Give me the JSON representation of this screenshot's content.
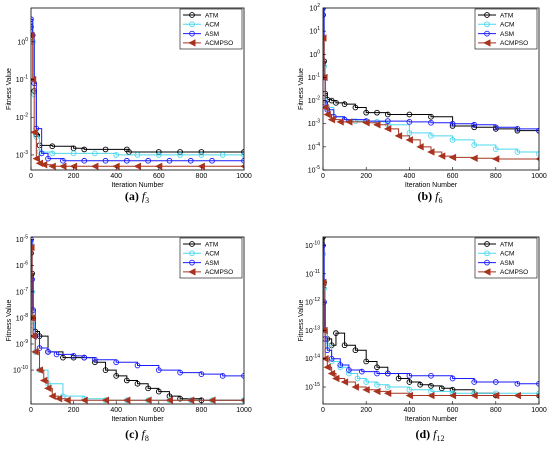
{
  "series_styles": {
    "ATM": {
      "color": "#000000",
      "marker": "circle"
    },
    "ACM": {
      "color": "#4dd8ee",
      "marker": "circle"
    },
    "ASM": {
      "color": "#1a1aff",
      "marker": "circle"
    },
    "ACMPSO": {
      "color": "#a8331f",
      "marker": "triangle-left"
    }
  },
  "chart_data": [
    {
      "type": "line",
      "caption_letter": "(a)",
      "caption_func": "f",
      "caption_sub": "3",
      "xlabel": "Iteration Number",
      "ylabel": "Fitness Value",
      "xlim": [
        0,
        1000
      ],
      "ylim_log10": [
        -3.4,
        0.9
      ],
      "yscale": "log",
      "xticks": [
        0,
        200,
        400,
        600,
        800,
        1000
      ],
      "yticks": [
        {
          "exp": -3,
          "label_exp": "-3"
        },
        {
          "exp": -2,
          "label_exp": "-2"
        },
        {
          "exp": -1,
          "label_exp": "-1"
        },
        {
          "exp": 0,
          "label_exp": "0"
        }
      ],
      "legend": [
        "ATM",
        "ACM",
        "ASM",
        "ACMPSO"
      ],
      "legend_position": "top-right",
      "series": [
        {
          "name": "ATM",
          "x": [
            0,
            8,
            15,
            25,
            40,
            100,
            200,
            250,
            350,
            450,
            460,
            600,
            700,
            800,
            1000
          ],
          "y": [
            2.5,
            1.0,
            0.05,
            0.0035,
            0.0018,
            0.0017,
            0.0015,
            0.0014,
            0.0014,
            0.0014,
            0.0012,
            0.0012,
            0.0012,
            0.0012,
            0.0012
          ]
        },
        {
          "name": "ACM",
          "x": [
            0,
            8,
            15,
            25,
            40,
            100,
            200,
            300,
            400,
            500,
            600,
            700,
            800,
            900,
            1000
          ],
          "y": [
            3.0,
            1.0,
            0.04,
            0.003,
            0.0012,
            0.0011,
            0.0011,
            0.0011,
            0.001,
            0.001,
            0.001,
            0.001,
            0.001,
            0.001,
            0.001
          ]
        },
        {
          "name": "ASM",
          "x": [
            0,
            8,
            15,
            25,
            50,
            80,
            150,
            250,
            350,
            450,
            550,
            650,
            750,
            850,
            1000
          ],
          "y": [
            4.0,
            1.5,
            0.08,
            0.005,
            0.0011,
            0.0008,
            0.0007,
            0.0007,
            0.0007,
            0.0007,
            0.0007,
            0.0007,
            0.0007,
            0.0007,
            0.0007
          ]
        },
        {
          "name": "ACMPSO",
          "x": [
            0,
            8,
            15,
            25,
            40,
            60,
            100,
            150,
            200,
            300,
            400,
            500,
            600,
            800,
            1000
          ],
          "y": [
            1.5,
            0.1,
            0.004,
            0.0008,
            0.0006,
            0.00055,
            0.0005,
            0.0005,
            0.0005,
            0.0005,
            0.0005,
            0.0005,
            0.0005,
            0.0005,
            0.0005
          ]
        }
      ]
    },
    {
      "type": "line",
      "caption_letter": "(b)",
      "caption_func": "f",
      "caption_sub": "6",
      "xlabel": "Iteration Number",
      "ylabel": "Fitness Value",
      "xlim": [
        0,
        1000
      ],
      "ylim_log10": [
        -5,
        2
      ],
      "yscale": "log",
      "xticks": [
        0,
        200,
        400,
        600,
        800,
        1000
      ],
      "yticks": [
        {
          "exp": -5,
          "label_exp": "-5"
        },
        {
          "exp": -4,
          "label_exp": "-4"
        },
        {
          "exp": -3,
          "label_exp": "-3"
        },
        {
          "exp": -2,
          "label_exp": "-2"
        },
        {
          "exp": -1,
          "label_exp": "-1"
        },
        {
          "exp": 0,
          "label_exp": "0"
        },
        {
          "exp": 1,
          "label_exp": "1"
        },
        {
          "exp": 2,
          "label_exp": "2"
        }
      ],
      "tick_style": "plain",
      "legend": [
        "ATM",
        "ACM",
        "ASM",
        "ACMPSO"
      ],
      "legend_position": "top-right",
      "series": [
        {
          "name": "ATM",
          "x": [
            0,
            5,
            10,
            20,
            40,
            60,
            100,
            150,
            200,
            250,
            300,
            400,
            500,
            600,
            700,
            800,
            900,
            1000
          ],
          "y": [
            50,
            0.5,
            0.02,
            0.011,
            0.01,
            0.008,
            0.007,
            0.005,
            0.003,
            0.003,
            0.0025,
            0.0025,
            0.002,
            0.0008,
            0.0007,
            0.0006,
            0.0005,
            0.0005
          ]
        },
        {
          "name": "ACM",
          "x": [
            0,
            5,
            10,
            20,
            50,
            100,
            150,
            200,
            250,
            300,
            400,
            500,
            600,
            700,
            800,
            900,
            1000
          ],
          "y": [
            90,
            0.3,
            0.01,
            0.005,
            0.002,
            0.0015,
            0.0013,
            0.0013,
            0.0012,
            0.0009,
            0.0004,
            0.0003,
            0.0002,
            0.00012,
            8e-05,
            6e-05,
            5e-05
          ]
        },
        {
          "name": "ASM",
          "x": [
            0,
            5,
            10,
            20,
            50,
            100,
            200,
            300,
            400,
            500,
            600,
            700,
            800,
            900,
            1000
          ],
          "y": [
            100,
            0.1,
            0.008,
            0.004,
            0.002,
            0.0015,
            0.0013,
            0.0013,
            0.0012,
            0.0011,
            0.001,
            0.0009,
            0.0007,
            0.0006,
            0.0005
          ]
        },
        {
          "name": "ACMPSO",
          "x": [
            0,
            5,
            10,
            20,
            40,
            80,
            120,
            200,
            250,
            300,
            350,
            400,
            450,
            500,
            550,
            600,
            700,
            800,
            1000
          ],
          "y": [
            5,
            0.1,
            0.005,
            0.0025,
            0.0015,
            0.0012,
            0.0012,
            0.0011,
            0.0009,
            0.0006,
            0.0003,
            0.0002,
            0.0001,
            6e-05,
            4e-05,
            3.5e-05,
            3.2e-05,
            3e-05,
            3e-05
          ]
        }
      ]
    },
    {
      "type": "line",
      "caption_letter": "(c)",
      "caption_func": "f",
      "caption_sub": "8",
      "xlabel": "Iteration Number",
      "ylabel": "Fitness Value",
      "xlim": [
        0,
        1000
      ],
      "ylim_log10": [
        -11.3,
        -4.9
      ],
      "yscale": "log",
      "xticks": [
        0,
        200,
        400,
        600,
        800,
        1000
      ],
      "yticks": [
        {
          "exp": -10,
          "label_exp": "-10"
        },
        {
          "exp": -9,
          "label_exp": "-9"
        },
        {
          "exp": -8,
          "label_exp": "-8"
        },
        {
          "exp": -7,
          "label_exp": "-7"
        },
        {
          "exp": -6,
          "label_exp": "-6"
        },
        {
          "exp": -5,
          "label_exp": "-5"
        }
      ],
      "legend": [
        "ATM",
        "ACM",
        "ASM",
        "ACMPSO"
      ],
      "legend_position": "top-right",
      "series": [
        {
          "name": "ATM",
          "x": [
            0,
            5,
            10,
            20,
            40,
            80,
            150,
            200,
            250,
            300,
            350,
            400,
            450,
            500,
            550,
            600,
            650,
            700,
            800,
            1000
          ],
          "y": [
            3e-06,
            5e-07,
            1e-08,
            3e-09,
            2e-09,
            5e-10,
            3e-10,
            3e-10,
            3e-10,
            2e-10,
            1e-10,
            6e-11,
            4e-11,
            3e-11,
            2e-11,
            1.5e-11,
            1e-11,
            8e-12,
            7e-12,
            7e-12
          ]
        },
        {
          "name": "ACM",
          "x": [
            0,
            5,
            10,
            20,
            40,
            80,
            150,
            250,
            350,
            450,
            550,
            650,
            750,
            850,
            1000
          ],
          "y": [
            8e-06,
            1e-07,
            5e-09,
            5e-10,
            1e-10,
            3e-11,
            1e-11,
            8e-12,
            7e-12,
            7e-12,
            7e-12,
            7e-12,
            7e-12,
            7e-12,
            7e-12
          ]
        },
        {
          "name": "ASM",
          "x": [
            0,
            5,
            10,
            20,
            40,
            80,
            120,
            200,
            250,
            300,
            400,
            500,
            600,
            700,
            800,
            900,
            1000
          ],
          "y": [
            1e-05,
            3e-07,
            2e-08,
            2e-09,
            7e-10,
            5e-10,
            4e-10,
            3.5e-10,
            3e-10,
            2.5e-10,
            2e-10,
            1.5e-10,
            1e-10,
            8e-11,
            7e-11,
            6e-11,
            6e-11
          ]
        },
        {
          "name": "ACMPSO",
          "x": [
            0,
            5,
            10,
            20,
            40,
            60,
            80,
            100,
            130,
            170,
            250,
            350,
            450,
            550,
            650,
            750,
            850,
            1000
          ],
          "y": [
            5e-06,
            1e-08,
            2e-09,
            5e-10,
            1e-10,
            4e-11,
            2e-11,
            1e-11,
            8e-12,
            7e-12,
            7e-12,
            7e-12,
            7e-12,
            7e-12,
            7e-12,
            7e-12,
            7e-12,
            7e-12
          ]
        }
      ]
    },
    {
      "type": "line",
      "caption_letter": "(d)",
      "caption_func": "f",
      "caption_sub": "12",
      "xlabel": "Iteration Number",
      "ylabel": "Fitness Value",
      "xlim": [
        0,
        1000
      ],
      "ylim_log10": [
        -15.6,
        -9.7
      ],
      "yscale": "log",
      "xticks": [
        0,
        200,
        400,
        600,
        800,
        1000
      ],
      "yticks": [
        {
          "exp": -15,
          "label_exp": "-15"
        },
        {
          "exp": -14,
          "label_exp": "-14"
        },
        {
          "exp": -13,
          "label_exp": "-13"
        },
        {
          "exp": -12,
          "label_exp": "-12"
        },
        {
          "exp": -11,
          "label_exp": "-11"
        },
        {
          "exp": -10,
          "label_exp": "-10"
        }
      ],
      "legend": [
        "ATM",
        "ACM",
        "ASM",
        "ACMPSO"
      ],
      "legend_position": "top-right",
      "series": [
        {
          "name": "ATM",
          "x": [
            0,
            5,
            10,
            20,
            40,
            60,
            100,
            150,
            200,
            250,
            300,
            350,
            400,
            450,
            500,
            550,
            600,
            700,
            800,
            1000
          ],
          "y": [
            2e-10,
            5e-12,
            1e-13,
            5e-14,
            3e-14,
            8e-14,
            3e-14,
            2e-14,
            8e-15,
            5e-15,
            3e-15,
            2e-15,
            1.5e-15,
            1.2e-15,
            1.1e-15,
            9e-16,
            8e-16,
            6e-16,
            5e-16,
            5e-16
          ]
        },
        {
          "name": "ACM",
          "x": [
            0,
            5,
            10,
            20,
            40,
            80,
            120,
            160,
            200,
            250,
            300,
            400,
            500,
            600,
            700,
            800,
            1000
          ],
          "y": [
            5e-11,
            3e-12,
            1e-13,
            3e-14,
            8e-15,
            5e-15,
            3e-15,
            2e-15,
            1.5e-15,
            1.2e-15,
            1e-15,
            8e-16,
            7e-16,
            6e-16,
            6e-16,
            6e-16,
            6e-16
          ]
        },
        {
          "name": "ASM",
          "x": [
            0,
            5,
            10,
            20,
            40,
            80,
            120,
            180,
            250,
            300,
            400,
            500,
            600,
            700,
            800,
            900,
            1000
          ],
          "y": [
            1e-10,
            1e-12,
            5e-14,
            2e-14,
            1e-14,
            6e-15,
            4e-15,
            3.5e-15,
            3e-15,
            3e-15,
            2.5e-15,
            2.5e-15,
            2e-15,
            1.5e-15,
            1.5e-15,
            1.3e-15,
            1.3e-15
          ]
        },
        {
          "name": "ACMPSO",
          "x": [
            0,
            5,
            10,
            20,
            40,
            60,
            100,
            150,
            200,
            250,
            300,
            400,
            500,
            600,
            700,
            800,
            900,
            1000
          ],
          "y": [
            5e-12,
            1e-13,
            1e-14,
            5e-15,
            3e-15,
            2e-15,
            1.5e-15,
            1e-15,
            8e-16,
            7e-16,
            6e-16,
            5e-16,
            5e-16,
            5e-16,
            5e-16,
            5e-16,
            5e-16,
            5e-16
          ]
        }
      ]
    }
  ]
}
